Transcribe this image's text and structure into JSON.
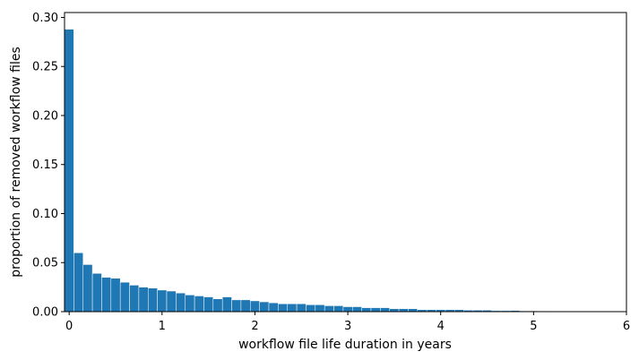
{
  "chart_data": {
    "type": "bar",
    "title": "",
    "xlabel": "workflow file life duration in years",
    "ylabel": "proportion of removed workflow files",
    "xlim": [
      -0.05,
      6
    ],
    "ylim": [
      0,
      0.305
    ],
    "x_ticks": [
      0,
      1,
      2,
      3,
      4,
      5,
      6
    ],
    "x_tick_labels": [
      "0",
      "1",
      "2",
      "3",
      "4",
      "5",
      "6"
    ],
    "y_ticks": [
      0,
      0.05,
      0.1,
      0.15,
      0.2,
      0.25,
      0.3
    ],
    "y_tick_labels": [
      "0.00",
      "0.05",
      "0.10",
      "0.15",
      "0.20",
      "0.25",
      "0.30"
    ],
    "grid": false,
    "legend": false,
    "bar_color": "#1f77b4",
    "bin_edges": [
      -0.05,
      0.05,
      0.15,
      0.25,
      0.35,
      0.45,
      0.55,
      0.65,
      0.75,
      0.85,
      0.95,
      1.05,
      1.15,
      1.25,
      1.35,
      1.45,
      1.55,
      1.65,
      1.75,
      1.85,
      1.95,
      2.05,
      2.15,
      2.25,
      2.35,
      2.45,
      2.55,
      2.65,
      2.75,
      2.85,
      2.95,
      3.05,
      3.15,
      3.25,
      3.35,
      3.45,
      3.55,
      3.65,
      3.75,
      3.85,
      3.95,
      4.05,
      4.15,
      4.25,
      4.35,
      4.45,
      4.55,
      4.65,
      4.75,
      4.85,
      4.95,
      5.05,
      5.15,
      5.25,
      5.35,
      5.45,
      5.55,
      5.65,
      5.75,
      5.85,
      5.95
    ],
    "values": [
      0.288,
      0.06,
      0.048,
      0.039,
      0.035,
      0.034,
      0.03,
      0.027,
      0.025,
      0.024,
      0.022,
      0.021,
      0.019,
      0.017,
      0.016,
      0.015,
      0.013,
      0.015,
      0.012,
      0.012,
      0.011,
      0.01,
      0.009,
      0.008,
      0.008,
      0.008,
      0.007,
      0.007,
      0.006,
      0.006,
      0.005,
      0.005,
      0.004,
      0.004,
      0.004,
      0.003,
      0.003,
      0.003,
      0.002,
      0.002,
      0.002,
      0.002,
      0.002,
      0.0015,
      0.0015,
      0.0015,
      0.001,
      0.001,
      0.0012,
      0.0008,
      0.0008,
      0.0006,
      0.0005,
      0.0005,
      0.0004,
      0.0004,
      0.0003,
      0.0003,
      0.0002,
      0.0002
    ]
  }
}
